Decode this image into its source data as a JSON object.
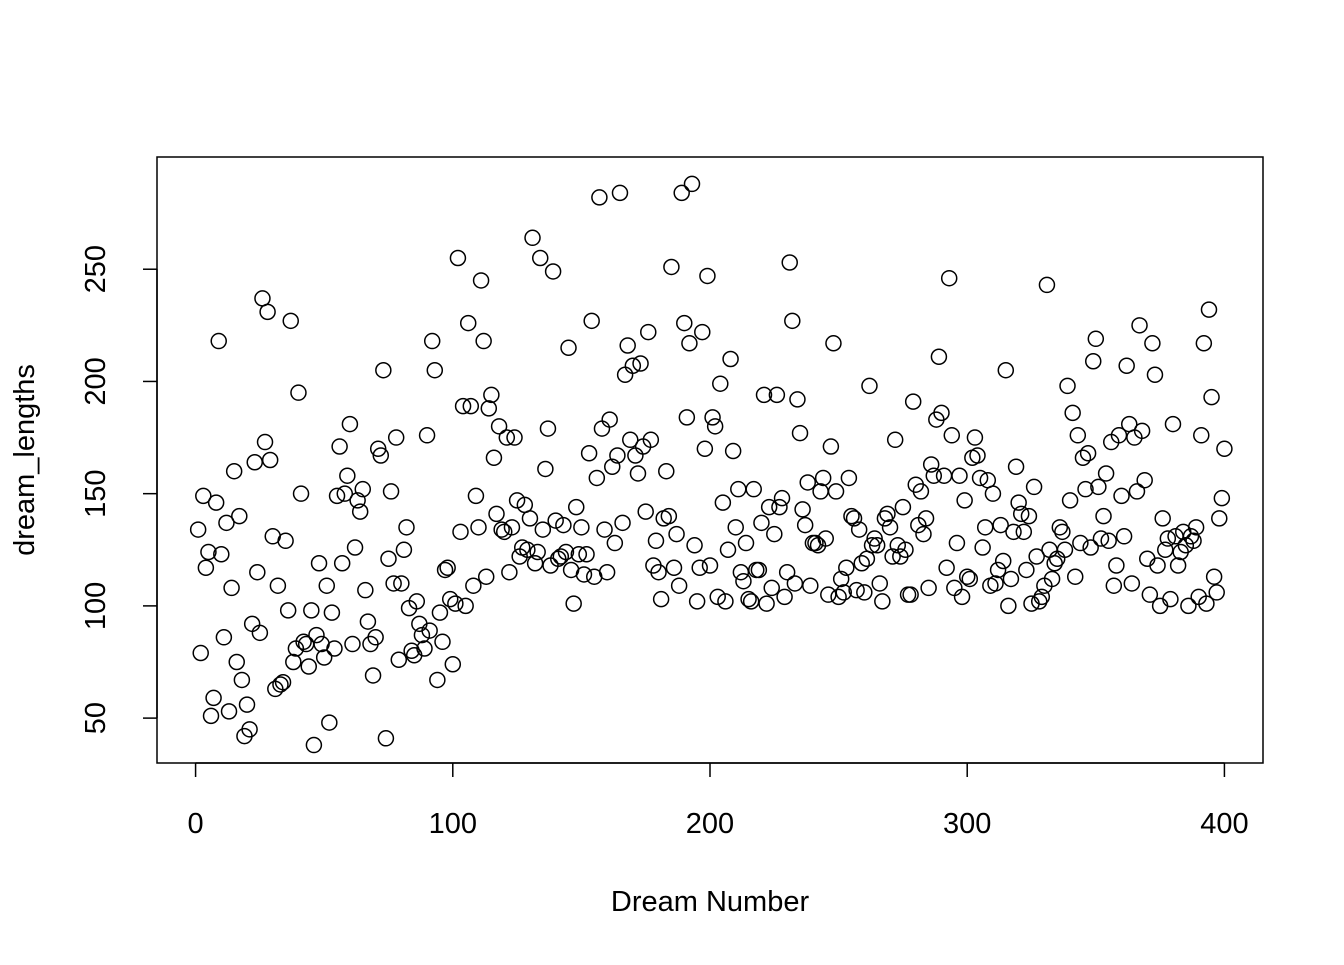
{
  "chart_data": {
    "type": "scatter",
    "title": "",
    "xlabel": "Dream Number",
    "ylabel": "dream_lengths",
    "xlim": [
      -15,
      415
    ],
    "ylim": [
      30,
      300
    ],
    "xticks": [
      0,
      100,
      200,
      300,
      400
    ],
    "yticks": [
      50,
      100,
      150,
      200,
      250
    ],
    "grid": false,
    "legend": "none",
    "marker": "open-circle",
    "colors": {
      "point": "#000000",
      "axis": "#000000",
      "background": "#ffffff"
    },
    "points": [
      [
        1,
        134
      ],
      [
        2,
        79
      ],
      [
        3,
        149
      ],
      [
        4,
        117
      ],
      [
        5,
        124
      ],
      [
        6,
        51
      ],
      [
        7,
        59
      ],
      [
        8,
        146
      ],
      [
        9,
        218
      ],
      [
        10,
        123
      ],
      [
        11,
        86
      ],
      [
        12,
        137
      ],
      [
        13,
        53
      ],
      [
        14,
        108
      ],
      [
        15,
        160
      ],
      [
        16,
        75
      ],
      [
        17,
        140
      ],
      [
        18,
        67
      ],
      [
        19,
        42
      ],
      [
        20,
        56
      ],
      [
        21,
        45
      ],
      [
        22,
        92
      ],
      [
        23,
        164
      ],
      [
        24,
        115
      ],
      [
        25,
        88
      ],
      [
        26,
        237
      ],
      [
        27,
        173
      ],
      [
        28,
        231
      ],
      [
        29,
        165
      ],
      [
        30,
        131
      ],
      [
        31,
        63
      ],
      [
        32,
        109
      ],
      [
        33,
        65
      ],
      [
        34,
        66
      ],
      [
        35,
        129
      ],
      [
        36,
        98
      ],
      [
        37,
        227
      ],
      [
        38,
        75
      ],
      [
        39,
        81
      ],
      [
        40,
        195
      ],
      [
        41,
        150
      ],
      [
        42,
        84
      ],
      [
        43,
        83
      ],
      [
        44,
        73
      ],
      [
        45,
        98
      ],
      [
        46,
        38
      ],
      [
        47,
        87
      ],
      [
        48,
        119
      ],
      [
        49,
        83
      ],
      [
        50,
        77
      ],
      [
        51,
        109
      ],
      [
        52,
        48
      ],
      [
        53,
        97
      ],
      [
        54,
        81
      ],
      [
        55,
        149
      ],
      [
        56,
        171
      ],
      [
        57,
        119
      ],
      [
        58,
        150
      ],
      [
        59,
        158
      ],
      [
        60,
        181
      ],
      [
        61,
        83
      ],
      [
        62,
        126
      ],
      [
        63,
        147
      ],
      [
        64,
        142
      ],
      [
        65,
        152
      ],
      [
        66,
        107
      ],
      [
        67,
        93
      ],
      [
        68,
        83
      ],
      [
        69,
        69
      ],
      [
        70,
        86
      ],
      [
        71,
        170
      ],
      [
        72,
        167
      ],
      [
        73,
        205
      ],
      [
        74,
        41
      ],
      [
        75,
        121
      ],
      [
        76,
        151
      ],
      [
        77,
        110
      ],
      [
        78,
        175
      ],
      [
        79,
        76
      ],
      [
        80,
        110
      ],
      [
        81,
        125
      ],
      [
        82,
        135
      ],
      [
        83,
        99
      ],
      [
        84,
        80
      ],
      [
        85,
        78
      ],
      [
        86,
        102
      ],
      [
        87,
        92
      ],
      [
        88,
        87
      ],
      [
        89,
        81
      ],
      [
        90,
        176
      ],
      [
        91,
        89
      ],
      [
        92,
        218
      ],
      [
        93,
        205
      ],
      [
        94,
        67
      ],
      [
        95,
        97
      ],
      [
        96,
        84
      ],
      [
        97,
        116
      ],
      [
        98,
        117
      ],
      [
        99,
        103
      ],
      [
        100,
        74
      ],
      [
        101,
        101
      ],
      [
        102,
        255
      ],
      [
        103,
        133
      ],
      [
        104,
        189
      ],
      [
        105,
        100
      ],
      [
        106,
        226
      ],
      [
        107,
        189
      ],
      [
        108,
        109
      ],
      [
        109,
        149
      ],
      [
        110,
        135
      ],
      [
        111,
        245
      ],
      [
        112,
        218
      ],
      [
        113,
        113
      ],
      [
        114,
        188
      ],
      [
        115,
        194
      ],
      [
        116,
        166
      ],
      [
        117,
        141
      ],
      [
        118,
        180
      ],
      [
        119,
        134
      ],
      [
        120,
        133
      ],
      [
        121,
        175
      ],
      [
        122,
        115
      ],
      [
        123,
        135
      ],
      [
        124,
        175
      ],
      [
        125,
        147
      ],
      [
        126,
        122
      ],
      [
        127,
        126
      ],
      [
        128,
        145
      ],
      [
        129,
        125
      ],
      [
        130,
        139
      ],
      [
        131,
        264
      ],
      [
        132,
        119
      ],
      [
        133,
        124
      ],
      [
        134,
        255
      ],
      [
        135,
        134
      ],
      [
        136,
        161
      ],
      [
        137,
        179
      ],
      [
        138,
        118
      ],
      [
        139,
        249
      ],
      [
        140,
        138
      ],
      [
        141,
        121
      ],
      [
        142,
        122
      ],
      [
        143,
        136
      ],
      [
        144,
        124
      ],
      [
        145,
        215
      ],
      [
        146,
        116
      ],
      [
        147,
        101
      ],
      [
        148,
        144
      ],
      [
        149,
        123
      ],
      [
        150,
        135
      ],
      [
        151,
        114
      ],
      [
        152,
        123
      ],
      [
        153,
        168
      ],
      [
        154,
        227
      ],
      [
        155,
        113
      ],
      [
        156,
        157
      ],
      [
        157,
        282
      ],
      [
        158,
        179
      ],
      [
        159,
        134
      ],
      [
        160,
        115
      ],
      [
        161,
        183
      ],
      [
        162,
        162
      ],
      [
        163,
        128
      ],
      [
        164,
        167
      ],
      [
        165,
        284
      ],
      [
        166,
        137
      ],
      [
        167,
        203
      ],
      [
        168,
        216
      ],
      [
        169,
        174
      ],
      [
        170,
        207
      ],
      [
        171,
        167
      ],
      [
        172,
        159
      ],
      [
        173,
        208
      ],
      [
        174,
        171
      ],
      [
        175,
        142
      ],
      [
        176,
        222
      ],
      [
        177,
        174
      ],
      [
        178,
        118
      ],
      [
        179,
        129
      ],
      [
        180,
        115
      ],
      [
        181,
        103
      ],
      [
        182,
        139
      ],
      [
        183,
        160
      ],
      [
        184,
        140
      ],
      [
        185,
        251
      ],
      [
        186,
        117
      ],
      [
        187,
        132
      ],
      [
        188,
        109
      ],
      [
        189,
        284
      ],
      [
        190,
        226
      ],
      [
        191,
        184
      ],
      [
        192,
        217
      ],
      [
        193,
        288
      ],
      [
        194,
        127
      ],
      [
        195,
        102
      ],
      [
        196,
        117
      ],
      [
        197,
        222
      ],
      [
        198,
        170
      ],
      [
        199,
        247
      ],
      [
        200,
        118
      ],
      [
        201,
        184
      ],
      [
        202,
        180
      ],
      [
        203,
        104
      ],
      [
        204,
        199
      ],
      [
        205,
        146
      ],
      [
        206,
        102
      ],
      [
        207,
        125
      ],
      [
        208,
        210
      ],
      [
        209,
        169
      ],
      [
        210,
        135
      ],
      [
        211,
        152
      ],
      [
        212,
        115
      ],
      [
        213,
        111
      ],
      [
        214,
        128
      ],
      [
        215,
        103
      ],
      [
        216,
        102
      ],
      [
        217,
        152
      ],
      [
        218,
        116
      ],
      [
        219,
        116
      ],
      [
        220,
        137
      ],
      [
        221,
        194
      ],
      [
        222,
        101
      ],
      [
        223,
        144
      ],
      [
        224,
        108
      ],
      [
        225,
        132
      ],
      [
        226,
        194
      ],
      [
        227,
        144
      ],
      [
        228,
        148
      ],
      [
        229,
        104
      ],
      [
        230,
        115
      ],
      [
        231,
        253
      ],
      [
        232,
        227
      ],
      [
        233,
        110
      ],
      [
        234,
        192
      ],
      [
        235,
        177
      ],
      [
        236,
        143
      ],
      [
        237,
        136
      ],
      [
        238,
        155
      ],
      [
        239,
        109
      ],
      [
        240,
        128
      ],
      [
        241,
        128
      ],
      [
        242,
        127
      ],
      [
        243,
        151
      ],
      [
        244,
        157
      ],
      [
        245,
        130
      ],
      [
        246,
        105
      ],
      [
        247,
        171
      ],
      [
        248,
        217
      ],
      [
        249,
        151
      ],
      [
        250,
        104
      ],
      [
        251,
        112
      ],
      [
        252,
        106
      ],
      [
        253,
        117
      ],
      [
        254,
        157
      ],
      [
        255,
        140
      ],
      [
        256,
        139
      ],
      [
        257,
        107
      ],
      [
        258,
        134
      ],
      [
        259,
        119
      ],
      [
        260,
        106
      ],
      [
        261,
        121
      ],
      [
        262,
        198
      ],
      [
        263,
        127
      ],
      [
        264,
        130
      ],
      [
        265,
        127
      ],
      [
        266,
        110
      ],
      [
        267,
        102
      ],
      [
        268,
        139
      ],
      [
        269,
        141
      ],
      [
        270,
        135
      ],
      [
        271,
        122
      ],
      [
        272,
        174
      ],
      [
        273,
        127
      ],
      [
        274,
        122
      ],
      [
        275,
        144
      ],
      [
        276,
        125
      ],
      [
        277,
        105
      ],
      [
        278,
        105
      ],
      [
        279,
        191
      ],
      [
        280,
        154
      ],
      [
        281,
        136
      ],
      [
        282,
        151
      ],
      [
        283,
        132
      ],
      [
        284,
        139
      ],
      [
        285,
        108
      ],
      [
        286,
        163
      ],
      [
        287,
        158
      ],
      [
        288,
        183
      ],
      [
        289,
        211
      ],
      [
        290,
        186
      ],
      [
        291,
        158
      ],
      [
        292,
        117
      ],
      [
        293,
        246
      ],
      [
        294,
        176
      ],
      [
        295,
        108
      ],
      [
        296,
        128
      ],
      [
        297,
        158
      ],
      [
        298,
        104
      ],
      [
        299,
        147
      ],
      [
        300,
        113
      ],
      [
        301,
        112
      ],
      [
        302,
        166
      ],
      [
        303,
        175
      ],
      [
        304,
        167
      ],
      [
        305,
        157
      ],
      [
        306,
        126
      ],
      [
        307,
        135
      ],
      [
        308,
        156
      ],
      [
        309,
        109
      ],
      [
        310,
        150
      ],
      [
        311,
        110
      ],
      [
        312,
        116
      ],
      [
        313,
        136
      ],
      [
        314,
        120
      ],
      [
        315,
        205
      ],
      [
        316,
        100
      ],
      [
        317,
        112
      ],
      [
        318,
        133
      ],
      [
        319,
        162
      ],
      [
        320,
        146
      ],
      [
        321,
        141
      ],
      [
        322,
        133
      ],
      [
        323,
        116
      ],
      [
        324,
        140
      ],
      [
        325,
        101
      ],
      [
        326,
        153
      ],
      [
        327,
        122
      ],
      [
        328,
        102
      ],
      [
        329,
        104
      ],
      [
        330,
        109
      ],
      [
        331,
        243
      ],
      [
        332,
        125
      ],
      [
        333,
        112
      ],
      [
        334,
        119
      ],
      [
        335,
        121
      ],
      [
        336,
        135
      ],
      [
        337,
        133
      ],
      [
        338,
        125
      ],
      [
        339,
        198
      ],
      [
        340,
        147
      ],
      [
        341,
        186
      ],
      [
        342,
        113
      ],
      [
        343,
        176
      ],
      [
        344,
        128
      ],
      [
        345,
        166
      ],
      [
        346,
        152
      ],
      [
        347,
        168
      ],
      [
        348,
        126
      ],
      [
        349,
        209
      ],
      [
        350,
        219
      ],
      [
        351,
        153
      ],
      [
        352,
        130
      ],
      [
        353,
        140
      ],
      [
        354,
        159
      ],
      [
        355,
        129
      ],
      [
        356,
        173
      ],
      [
        357,
        109
      ],
      [
        358,
        118
      ],
      [
        359,
        176
      ],
      [
        360,
        149
      ],
      [
        361,
        131
      ],
      [
        362,
        207
      ],
      [
        363,
        181
      ],
      [
        364,
        110
      ],
      [
        365,
        175
      ],
      [
        366,
        151
      ],
      [
        367,
        225
      ],
      [
        368,
        178
      ],
      [
        369,
        156
      ],
      [
        370,
        121
      ],
      [
        371,
        105
      ],
      [
        372,
        217
      ],
      [
        373,
        203
      ],
      [
        374,
        118
      ],
      [
        375,
        100
      ],
      [
        376,
        139
      ],
      [
        377,
        125
      ],
      [
        378,
        130
      ],
      [
        379,
        103
      ],
      [
        380,
        181
      ],
      [
        381,
        131
      ],
      [
        382,
        118
      ],
      [
        383,
        124
      ],
      [
        384,
        133
      ],
      [
        385,
        127
      ],
      [
        386,
        100
      ],
      [
        387,
        131
      ],
      [
        388,
        129
      ],
      [
        389,
        135
      ],
      [
        390,
        104
      ],
      [
        391,
        176
      ],
      [
        392,
        217
      ],
      [
        393,
        101
      ],
      [
        394,
        232
      ],
      [
        395,
        193
      ],
      [
        396,
        113
      ],
      [
        397,
        106
      ],
      [
        398,
        139
      ],
      [
        399,
        148
      ],
      [
        400,
        170
      ]
    ]
  }
}
